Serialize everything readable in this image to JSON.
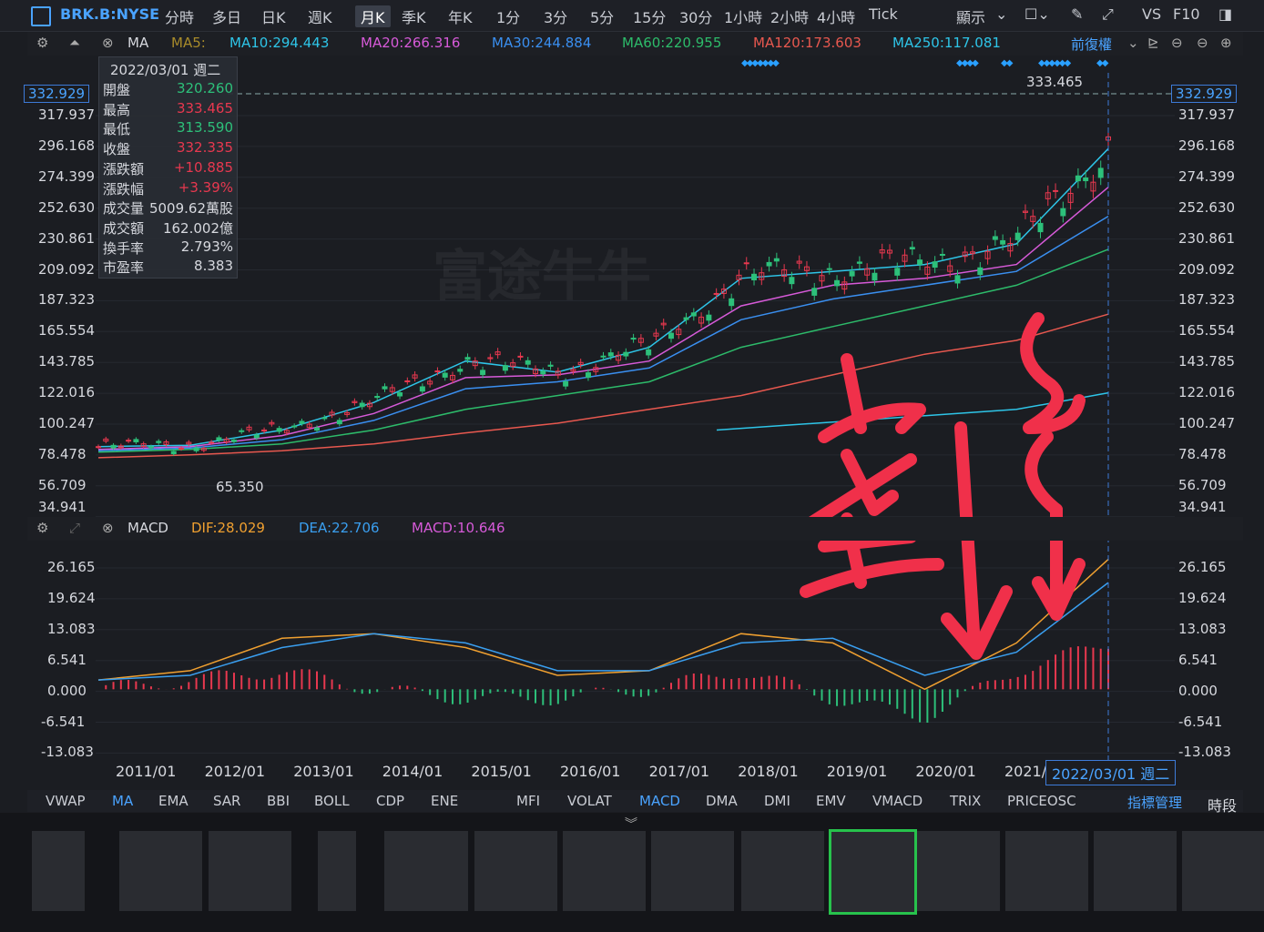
{
  "toolbar": {
    "symbol": "BRK.B:NYSE",
    "timeframes": [
      "分時",
      "多日",
      "日K",
      "週K",
      "月K",
      "季K",
      "年K",
      "1分",
      "3分",
      "5分",
      "15分",
      "30分",
      "1小時",
      "2小時",
      "4小時",
      "Tick"
    ],
    "active_timeframe": "月K",
    "display_label": "顯示",
    "vs_label": "VS",
    "f10_label": "F10"
  },
  "ma_bar": {
    "name": "MA",
    "ma5": "MA5:",
    "ma10": "MA10:294.443",
    "ma20": "MA20:266.316",
    "ma30": "MA30:244.884",
    "ma60": "MA60:220.955",
    "ma120": "MA120:173.603",
    "ma250": "MA250:117.081",
    "adjust": "前復權"
  },
  "macd_bar": {
    "name": "MACD",
    "dif": "DIF:28.029",
    "dea": "DEA:22.706",
    "macd": "MACD:10.646"
  },
  "popup": {
    "date": "2022/03/01 週二",
    "rows": [
      {
        "k": "開盤",
        "v": "320.260",
        "c": "#2dc07a"
      },
      {
        "k": "最高",
        "v": "333.465",
        "c": "#e8384f"
      },
      {
        "k": "最低",
        "v": "313.590",
        "c": "#2dc07a"
      },
      {
        "k": "收盤",
        "v": "332.335",
        "c": "#e8384f"
      },
      {
        "k": "漲跌額",
        "v": "+10.885",
        "c": "#e8384f"
      },
      {
        "k": "漲跌幅",
        "v": "+3.39%",
        "c": "#e8384f"
      },
      {
        "k": "成交量",
        "v": "5009.62萬股",
        "c": "#d6d8de"
      },
      {
        "k": "成交額",
        "v": "162.002億",
        "c": "#d6d8de"
      },
      {
        "k": "換手率",
        "v": "2.793%",
        "c": "#d6d8de"
      },
      {
        "k": "市盈率",
        "v": "8.383",
        "c": "#d6d8de"
      }
    ]
  },
  "price_axis": [
    "317.937",
    "296.168",
    "274.399",
    "252.630",
    "230.861",
    "209.092",
    "187.323",
    "165.554",
    "143.785",
    "122.016",
    "100.247",
    "78.478",
    "56.709",
    "34.941"
  ],
  "macd_axis": [
    "26.165",
    "19.624",
    "13.083",
    "6.541",
    "0.000",
    "-6.541",
    "-13.083"
  ],
  "current_price": "332.929",
  "high_label": "333.465",
  "low_label": "65.350",
  "x_axis": [
    "2011/01",
    "2012/01",
    "2013/01",
    "2014/01",
    "2015/01",
    "2016/01",
    "2017/01",
    "2018/01",
    "2019/01",
    "2020/01",
    "2021/"
  ],
  "cursor_date": "2022/03/01 週二",
  "watermark": "富途牛牛",
  "annotation": "空 多",
  "indicator_tabs": [
    "VWAP",
    "MA",
    "EMA",
    "SAR",
    "BBI",
    "BOLL",
    "CDP",
    "ENE",
    "MFI",
    "VOLAT",
    "MACD",
    "DMA",
    "DMI",
    "EMV",
    "VMACD",
    "TRIX",
    "PRICEOSC"
  ],
  "indicator_manage": "指標管理",
  "period_label": "時段",
  "chart_data": {
    "type": "line",
    "title": "",
    "xlabel": "",
    "ylabel": "",
    "ylim": [
      34.941,
      333.465
    ],
    "x": [
      "2011/01",
      "2012/01",
      "2013/01",
      "2014/01",
      "2015/01",
      "2016/01",
      "2017/01",
      "2018/01",
      "2019/01",
      "2020/01",
      "2021/01",
      "2022/03"
    ],
    "series": [
      {
        "name": "MA10",
        "values": [
          78,
          79,
          90,
          110,
          140,
          132,
          150,
          200,
          205,
          210,
          225,
          294
        ]
      },
      {
        "name": "MA20",
        "values": [
          76,
          78,
          86,
          102,
          128,
          130,
          140,
          180,
          195,
          200,
          210,
          266
        ]
      },
      {
        "name": "MA30",
        "values": [
          75,
          77,
          83,
          97,
          120,
          125,
          135,
          170,
          185,
          195,
          205,
          245
        ]
      },
      {
        "name": "MA60",
        "values": [
          74,
          76,
          80,
          90,
          105,
          115,
          125,
          150,
          165,
          180,
          195,
          221
        ]
      },
      {
        "name": "MA120",
        "values": [
          70,
          72,
          75,
          80,
          88,
          95,
          105,
          115,
          130,
          145,
          155,
          174
        ]
      },
      {
        "name": "MA250",
        "values": [
          null,
          null,
          null,
          null,
          null,
          null,
          null,
          null,
          null,
          90,
          105,
          117
        ]
      }
    ],
    "macd": {
      "ylim": [
        -13.083,
        26.165
      ],
      "dif": [
        2,
        4,
        11,
        12,
        9,
        3,
        4,
        12,
        10,
        0,
        10,
        28
      ],
      "dea": [
        2,
        3,
        9,
        12,
        10,
        4,
        4,
        10,
        11,
        3,
        8,
        23
      ]
    }
  }
}
